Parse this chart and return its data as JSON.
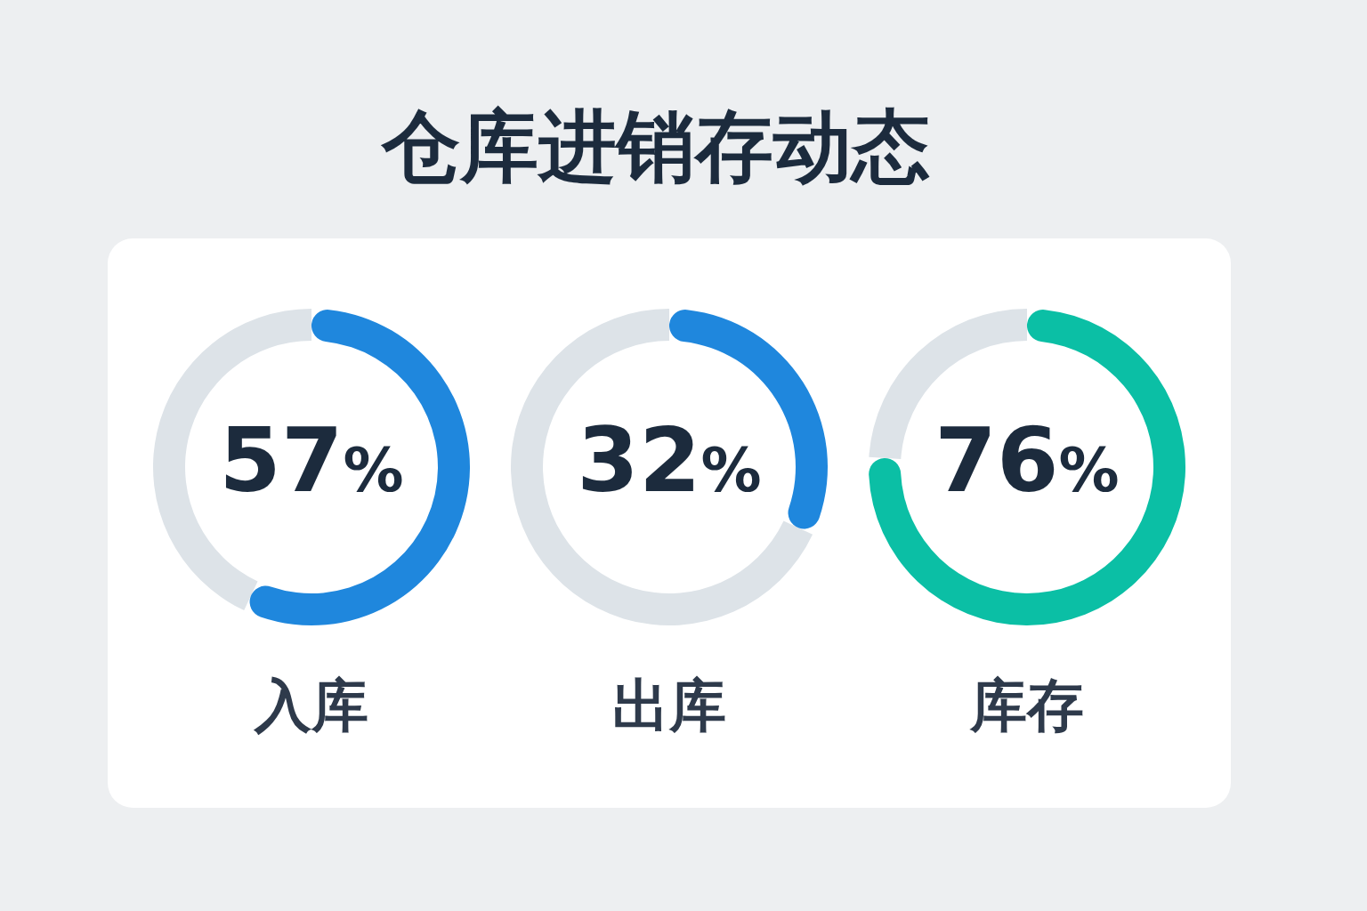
{
  "chart_data": [
    {
      "type": "other",
      "title": "仓库进销存动态"
    },
    {
      "type": "donut",
      "xlabel": "入库",
      "categories": [
        null,
        null
      ],
      "values": [
        57,
        43
      ],
      "colors": [
        "#1f87dd",
        "#dde3e8"
      ],
      "value_labels": [
        "57%",
        null
      ]
    },
    {
      "type": "donut",
      "xlabel": "出库",
      "categories": [
        null,
        null
      ],
      "values": [
        32,
        68
      ],
      "colors": [
        "#1f87dd",
        "#dde3e8"
      ],
      "value_labels": [
        "32%",
        null
      ]
    },
    {
      "type": "donut",
      "xlabel": "库存",
      "categories": [
        null,
        null
      ],
      "values": [
        76,
        24
      ],
      "colors": [
        "#0bbfa5",
        "#dde3e8"
      ],
      "value_labels": [
        "76%",
        null
      ]
    }
  ]
}
